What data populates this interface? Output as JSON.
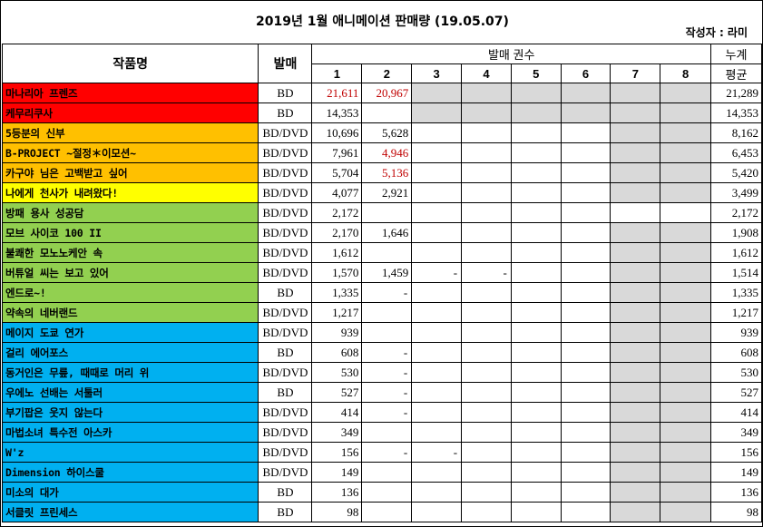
{
  "title": "2019년 1월 애니메이션 판매량 (19.05.07)",
  "author": "작성자 : 라미",
  "header": {
    "work": "작품명",
    "format": "발매",
    "volumes_group": "발매 권수",
    "volumes": [
      "1",
      "2",
      "3",
      "4",
      "5",
      "6",
      "7",
      "8"
    ],
    "total_line1": "누계",
    "total_line2": "평균"
  },
  "colors": {
    "red": "#ff0000",
    "orange": "#ffc000",
    "yellow": "#ffff00",
    "green": "#92d050",
    "blue": "#00b0f0",
    "gray": "#d9d9d9",
    "red_text": "#c00000"
  },
  "rows": [
    {
      "name": "마나리아 프렌즈",
      "color": "red",
      "format": "BD",
      "vols": [
        "21,611",
        "20,967"
      ],
      "red": [
        0,
        1
      ],
      "gray_from": 2,
      "avg": "21,289"
    },
    {
      "name": "케무리쿠사",
      "color": "red",
      "format": "BD",
      "vols": [
        "14,353"
      ],
      "gray_from": 2,
      "avg": "14,353"
    },
    {
      "name": "5등분의 신부",
      "color": "orange",
      "format": "BD/DVD",
      "vols": [
        "10,696",
        "5,628"
      ],
      "gray_from": 6,
      "avg": "8,162"
    },
    {
      "name": "B-PROJECT ~절정＊이모션~",
      "color": "orange",
      "format": "BD/DVD",
      "vols": [
        "7,961",
        "4,946"
      ],
      "red": [
        1
      ],
      "gray_from": 6,
      "avg": "6,453"
    },
    {
      "name": "카구야 님은 고백받고 싶어",
      "color": "orange",
      "format": "BD/DVD",
      "vols": [
        "5,704",
        "5,136"
      ],
      "red": [
        1
      ],
      "gray_from": 6,
      "avg": "5,420"
    },
    {
      "name": "나에게 천사가 내려왔다!",
      "color": "yellow",
      "format": "BD/DVD",
      "vols": [
        "4,077",
        "2,921"
      ],
      "gray_from": 6,
      "avg": "3,499"
    },
    {
      "name": "방패 용사 성공담",
      "color": "green",
      "format": "BD/DVD",
      "vols": [
        "2,172"
      ],
      "gray_from": 8,
      "avg": "2,172"
    },
    {
      "name": "모브 사이코 100 II",
      "color": "green",
      "format": "BD/DVD",
      "vols": [
        "2,170",
        "1,646"
      ],
      "gray_from": 6,
      "avg": "1,908"
    },
    {
      "name": "불쾌한 모노노케안 속",
      "color": "green",
      "format": "BD/DVD",
      "vols": [
        "1,612"
      ],
      "gray_from": 6,
      "avg": "1,612"
    },
    {
      "name": "버튜얼 씨는 보고 있어",
      "color": "green",
      "format": "BD/DVD",
      "vols": [
        "1,570",
        "1,459",
        "-",
        "-"
      ],
      "gray_from": 6,
      "avg": "1,514"
    },
    {
      "name": "엔드로~!",
      "color": "green",
      "format": "BD",
      "vols": [
        "1,335",
        "-"
      ],
      "gray_from": 6,
      "avg": "1,335"
    },
    {
      "name": "약속의 네버랜드",
      "color": "green",
      "format": "BD/DVD",
      "vols": [
        "1,217"
      ],
      "gray_from": 6,
      "avg": "1,217"
    },
    {
      "name": "메이지 도쿄 연가",
      "color": "blue",
      "format": "BD/DVD",
      "vols": [
        "939"
      ],
      "gray_from": 6,
      "avg": "939"
    },
    {
      "name": "걸리 에어포스",
      "color": "blue",
      "format": "BD",
      "vols": [
        "608",
        "-"
      ],
      "gray_from": 6,
      "avg": "608"
    },
    {
      "name": "동거인은 무릎, 때때로 머리 위",
      "color": "blue",
      "format": "BD/DVD",
      "vols": [
        "530",
        "-"
      ],
      "gray_from": 6,
      "avg": "530"
    },
    {
      "name": "우에노 선배는 서툴러",
      "color": "blue",
      "format": "BD",
      "vols": [
        "527",
        "-"
      ],
      "gray_from": 6,
      "avg": "527"
    },
    {
      "name": "부기팝은 웃지 않는다",
      "color": "blue",
      "format": "BD/DVD",
      "vols": [
        "414",
        "-"
      ],
      "gray_from": 6,
      "avg": "414"
    },
    {
      "name": "마법소녀 특수전 아스카",
      "color": "blue",
      "format": "BD/DVD",
      "vols": [
        "349"
      ],
      "gray_from": 6,
      "avg": "349"
    },
    {
      "name": "W'z",
      "color": "blue",
      "format": "BD/DVD",
      "vols": [
        "156",
        "-",
        "-"
      ],
      "gray_from": 6,
      "avg": "156"
    },
    {
      "name": "Dimension 하이스쿨",
      "color": "blue",
      "format": "BD/DVD",
      "vols": [
        "149"
      ],
      "gray_from": 6,
      "avg": "149"
    },
    {
      "name": "미소의 대가",
      "color": "blue",
      "format": "BD",
      "vols": [
        "136"
      ],
      "gray_from": 6,
      "avg": "136"
    },
    {
      "name": "서클릿 프린세스",
      "color": "blue",
      "format": "BD",
      "vols": [
        "98"
      ],
      "gray_from": 6,
      "avg": "98"
    }
  ]
}
